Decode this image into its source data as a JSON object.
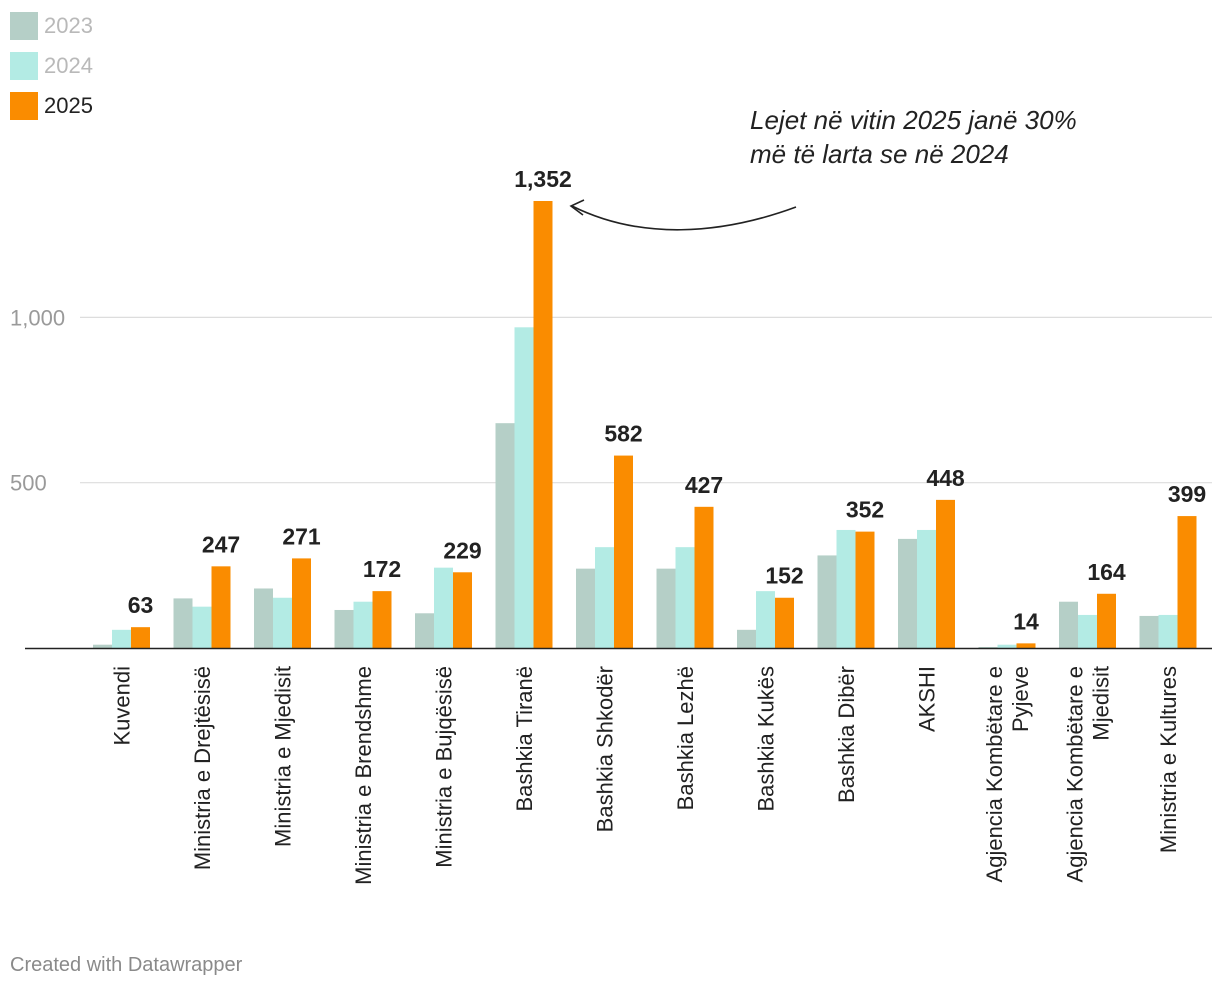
{
  "legend": [
    {
      "label": "2023",
      "color": "#b5cfc7",
      "state": "muted"
    },
    {
      "label": "2024",
      "color": "#b3ebe4",
      "state": "muted"
    },
    {
      "label": "2025",
      "color": "#fa8c00",
      "state": "active"
    }
  ],
  "annotation": {
    "text": "Lejet në vitin 2025 janë 30% më të larta se në 2024"
  },
  "footer": "Created with Datawrapper",
  "chart_data": {
    "type": "bar",
    "categories": [
      "Kuvendi",
      "Ministria e Drejtësisë",
      "Ministria e Mjedisit",
      "Ministria e Brendshme",
      "Ministria e Bujqësisë",
      "Bashkia Tiranë",
      "Bashkia Shkodër",
      "Bashkia Lezhë",
      "Bashkia Kukës",
      "Bashkia Dibër",
      "AKSHI",
      "Agjencia Kombëtare e Pyjeve",
      "Agjencia Kombëtare e Mjedisit",
      "Ministria e Kultures"
    ],
    "category_lines": [
      [
        "Kuvendi"
      ],
      [
        "Ministria e Drejtësisë"
      ],
      [
        "Ministria e Mjedisit"
      ],
      [
        "Ministria e Brendshme"
      ],
      [
        "Ministria e Bujqësisë"
      ],
      [
        "Bashkia Tiranë"
      ],
      [
        "Bashkia Shkodër"
      ],
      [
        "Bashkia Lezhë"
      ],
      [
        "Bashkia Kukës"
      ],
      [
        "Bashkia Dibër"
      ],
      [
        "AKSHI"
      ],
      [
        "Agjencia Kombëtare e",
        "Pyjeve"
      ],
      [
        "Agjencia Kombëtare e",
        "Mjedisit"
      ],
      [
        "Ministria e Kultures"
      ]
    ],
    "series": [
      {
        "name": "2023",
        "color": "#b5cfc7",
        "values": [
          10,
          150,
          180,
          115,
          105,
          680,
          240,
          240,
          55,
          280,
          330,
          3,
          140,
          97
        ]
      },
      {
        "name": "2024",
        "color": "#b3ebe4",
        "values": [
          55,
          125,
          152,
          140,
          243,
          970,
          305,
          305,
          172,
          357,
          357,
          10,
          100,
          100
        ]
      },
      {
        "name": "2025",
        "color": "#fa8c00",
        "values": [
          63,
          247,
          271,
          172,
          229,
          1352,
          582,
          427,
          152,
          352,
          448,
          14,
          164,
          399
        ]
      }
    ],
    "data_labels": [
      "63",
      "247",
      "271",
      "172",
      "229",
      "1,352",
      "582",
      "427",
      "152",
      "352",
      "448",
      "14",
      "164",
      "399"
    ],
    "y_ticks": [
      {
        "value": 500,
        "label": "500"
      },
      {
        "value": 1000,
        "label": "1,000"
      }
    ],
    "ylim": [
      0,
      1352
    ],
    "grid": true,
    "legend_position": "top-left"
  }
}
